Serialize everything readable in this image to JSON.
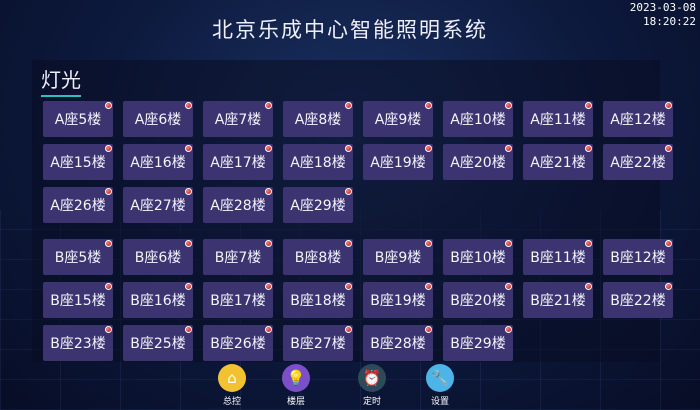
{
  "header": {
    "title": "北京乐成中心智能照明系统",
    "date": "2023-03-08",
    "time": "18:20:22"
  },
  "section_title": "灯光",
  "colors": {
    "button_bg": "#3b3470",
    "status_dot": "#d00000",
    "underline": "#2ac0c8"
  },
  "a_rows": [
    [
      "A座5楼",
      "A座6楼",
      "A座7楼",
      "A座8楼",
      "A座9楼",
      "A座10楼",
      "A座11楼",
      "A座12楼"
    ],
    [
      "A座15楼",
      "A座16楼",
      "A座17楼",
      "A座18楼",
      "A座19楼",
      "A座20楼",
      "A座21楼",
      "A座22楼"
    ],
    [
      "A座26楼",
      "A座27楼",
      "A座28楼",
      "A座29楼"
    ]
  ],
  "b_rows": [
    [
      "B座5楼",
      "B座6楼",
      "B座7楼",
      "B座8楼",
      "B座9楼",
      "B座10楼",
      "B座11楼",
      "B座12楼"
    ],
    [
      "B座15楼",
      "B座16楼",
      "B座17楼",
      "B座18楼",
      "B座19楼",
      "B座20楼",
      "B座21楼",
      "B座22楼"
    ],
    [
      "B座23楼",
      "B座25楼",
      "B座26楼",
      "B座27楼",
      "B座28楼",
      "B座29楼"
    ]
  ],
  "nav": [
    {
      "label": "总控",
      "icon": "home-icon",
      "color": "#f2c230",
      "glyph": "⌂"
    },
    {
      "label": "楼层",
      "icon": "lightbulb-icon",
      "color": "#7b4fc8",
      "glyph": "💡"
    },
    {
      "label": "定时",
      "icon": "alarm-clock-icon",
      "color": "#2c4a5a",
      "glyph": "⏰"
    },
    {
      "label": "设置",
      "icon": "wrench-icon",
      "color": "#4cb4e6",
      "glyph": "🔧"
    }
  ]
}
